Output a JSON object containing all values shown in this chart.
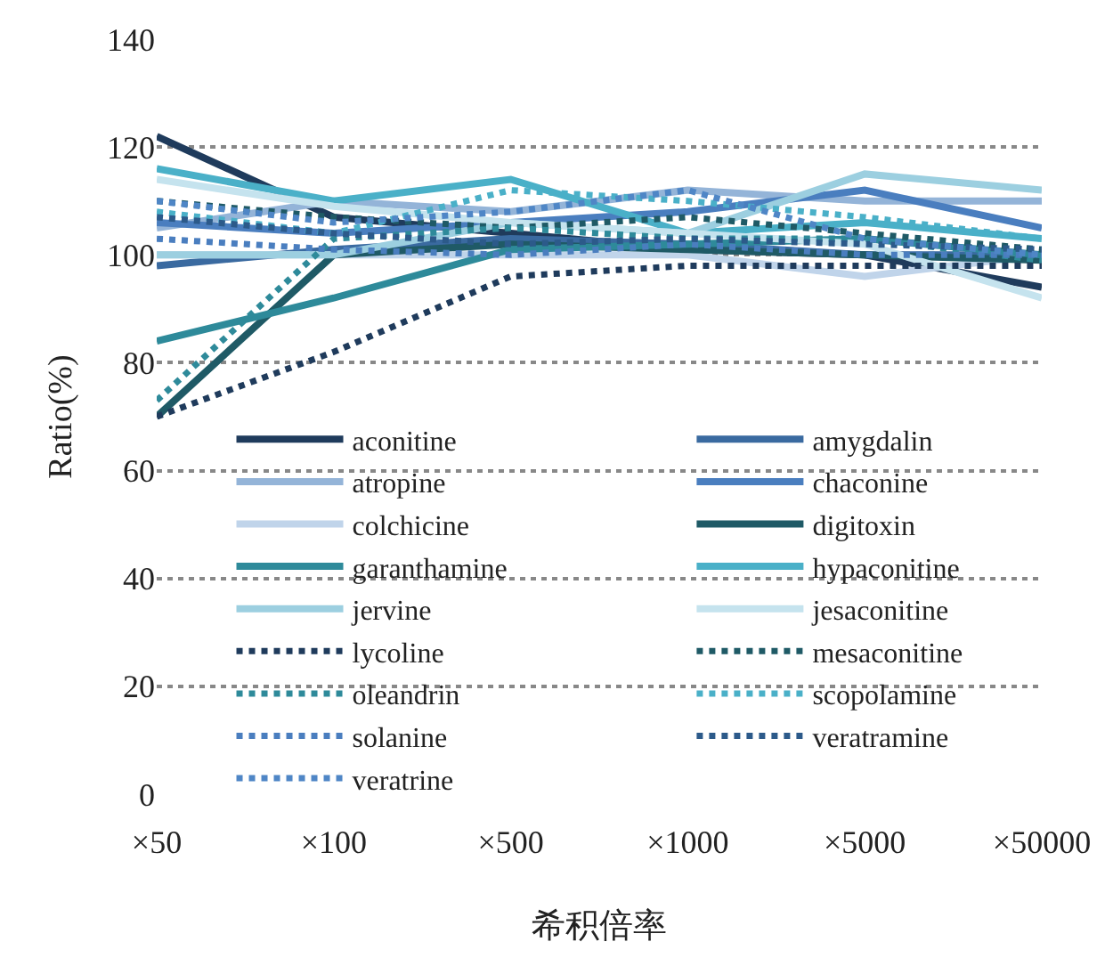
{
  "chart_data": {
    "type": "line",
    "xlabel": "希积倍率",
    "ylabel": "Ratio(%)",
    "categories": [
      "×50",
      "×100",
      "×500",
      "×1000",
      "×5000",
      "×50000"
    ],
    "ylim": [
      0,
      140
    ],
    "yticks": [
      0,
      20,
      40,
      60,
      80,
      100,
      120,
      140
    ],
    "grid": "y",
    "legend": "bottom",
    "series": [
      {
        "name": "aconitine",
        "color": "#1f3b5c",
        "line_style": "solid",
        "values": [
          122,
          107,
          104,
          101,
          100,
          94
        ]
      },
      {
        "name": "amygdalin",
        "color": "#3a6aa0",
        "line_style": "solid",
        "values": [
          98,
          101,
          103,
          102,
          100,
          100
        ]
      },
      {
        "name": "atropine",
        "color": "#94b4d8",
        "line_style": "solid",
        "values": [
          105,
          110,
          108,
          112,
          110,
          110
        ]
      },
      {
        "name": "chaconine",
        "color": "#4a7ebf",
        "line_style": "solid",
        "values": [
          106,
          104,
          106,
          108,
          112,
          105
        ]
      },
      {
        "name": "colchicine",
        "color": "#c0d4ea",
        "line_style": "solid",
        "values": [
          100,
          100,
          100,
          100,
          96,
          100
        ]
      },
      {
        "name": "digitoxin",
        "color": "#1f5a66",
        "line_style": "solid",
        "values": [
          70,
          100,
          102,
          101,
          100,
          99
        ]
      },
      {
        "name": "garanthamine",
        "color": "#2e8a9a",
        "line_style": "solid",
        "values": [
          84,
          92,
          101,
          102,
          103,
          100
        ]
      },
      {
        "name": "hypaconitine",
        "color": "#4ab0c8",
        "line_style": "solid",
        "values": [
          116,
          110,
          114,
          104,
          106,
          103
        ]
      },
      {
        "name": "jervine",
        "color": "#9ccfe0",
        "line_style": "solid",
        "values": [
          100,
          100,
          106,
          104,
          115,
          112
        ]
      },
      {
        "name": "jesaconitine",
        "color": "#c5e3ee",
        "line_style": "solid",
        "values": [
          114,
          109,
          106,
          104,
          102,
          92
        ]
      },
      {
        "name": "lycoline",
        "color": "#1f3b5c",
        "line_style": "dotted",
        "values": [
          70,
          82,
          96,
          98,
          98,
          98
        ]
      },
      {
        "name": "mesaconitine",
        "color": "#1f5a66",
        "line_style": "dotted",
        "values": [
          110,
          107,
          105,
          107,
          104,
          101
        ]
      },
      {
        "name": "oleandrin",
        "color": "#2e8a9a",
        "line_style": "dotted",
        "values": [
          73,
          103,
          105,
          103,
          103,
          99
        ]
      },
      {
        "name": "scopolamine",
        "color": "#4ab0c8",
        "line_style": "dotted",
        "values": [
          108,
          104,
          112,
          110,
          107,
          103
        ]
      },
      {
        "name": "solanine",
        "color": "#4a7ebf",
        "line_style": "dotted",
        "values": [
          103,
          101,
          100,
          102,
          100,
          100
        ]
      },
      {
        "name": "veratramine",
        "color": "#2c5a8a",
        "line_style": "dotted",
        "values": [
          107,
          104,
          102,
          103,
          102,
          101
        ]
      },
      {
        "name": "veratrine",
        "color": "#4f86c6",
        "line_style": "dotted",
        "values": [
          110,
          106,
          108,
          112,
          103,
          100
        ]
      }
    ]
  }
}
